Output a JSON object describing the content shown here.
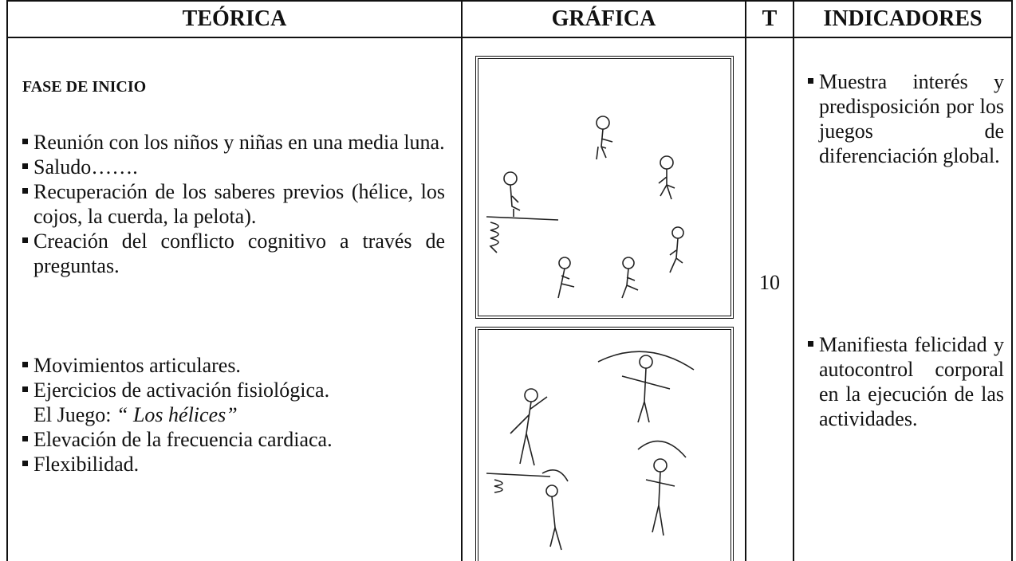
{
  "table": {
    "headers": [
      "TEÓRICA",
      "GRÁFICA",
      "T",
      "INDICADORES"
    ],
    "theory": {
      "phase": "FASE DE INICIO",
      "group_1": [
        {
          "text": "Reunión con los niños y niñas  en una media luna."
        },
        {
          "text": "Saludo……."
        },
        {
          "text": "Recuperación de los saberes previos (hélice, los cojos, la cuerda, la pelota)."
        },
        {
          "text": "Creación del conflicto cognitivo a través de preguntas."
        }
      ],
      "group_2": [
        {
          "text": "Movimientos articulares."
        },
        {
          "text": "Ejercicios  de activación fisiológica.",
          "game_label": "El Juego:",
          "game_name": "“ Los hélices”"
        },
        {
          "text": "Elevación de la frecuencia cardiaca."
        },
        {
          "text": "Flexibilidad."
        }
      ]
    },
    "time": "10",
    "indicators": [
      "Muestra interés y predisposición por los juegos de diferenciación global.",
      "Manifiesta felicidad y autocontrol corporal en la ejecución de las actividades."
    ]
  }
}
